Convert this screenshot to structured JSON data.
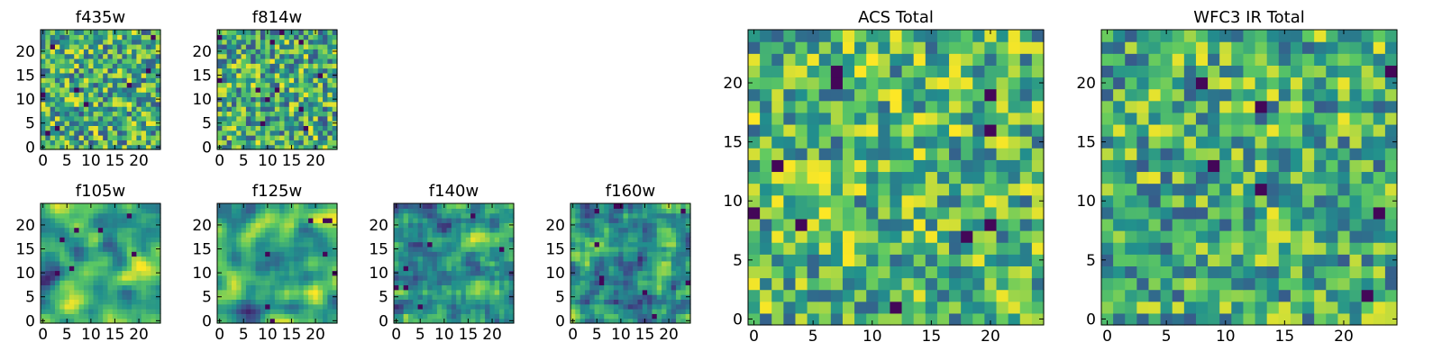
{
  "figure": {
    "colormap": "viridis",
    "colors": [
      "#440154",
      "#3b528b",
      "#21908d",
      "#5dc962",
      "#fde725"
    ]
  },
  "chart_data": [
    {
      "type": "heatmap",
      "title": "f435w",
      "size": 25,
      "seed": 435,
      "xticks": [
        0,
        5,
        10,
        15,
        20
      ],
      "yticks": [
        0,
        5,
        10,
        15,
        20
      ],
      "smooth": 0,
      "contrast": 1.25,
      "shift": 0.62
    },
    {
      "type": "heatmap",
      "title": "f814w",
      "size": 25,
      "seed": 814,
      "xticks": [
        0,
        5,
        10,
        15,
        20
      ],
      "yticks": [
        0,
        5,
        10,
        15,
        20
      ],
      "smooth": 0,
      "contrast": 1.25,
      "shift": 0.62
    },
    {
      "type": "heatmap",
      "title": "f105w",
      "size": 25,
      "seed": 105,
      "xticks": [
        0,
        5,
        10,
        15,
        20
      ],
      "yticks": [
        0,
        5,
        10,
        15,
        20
      ],
      "smooth": 2,
      "contrast": 1.55,
      "shift": 0.58
    },
    {
      "type": "heatmap",
      "title": "f125w",
      "size": 25,
      "seed": 125,
      "xticks": [
        0,
        5,
        10,
        15,
        20
      ],
      "yticks": [
        0,
        5,
        10,
        15,
        20
      ],
      "smooth": 2,
      "contrast": 1.55,
      "shift": 0.58
    },
    {
      "type": "heatmap",
      "title": "f140w",
      "size": 25,
      "seed": 140,
      "xticks": [
        0,
        5,
        10,
        15,
        20
      ],
      "yticks": [
        0,
        5,
        10,
        15,
        20
      ],
      "smooth": 1,
      "contrast": 1.4,
      "shift": 0.55
    },
    {
      "type": "heatmap",
      "title": "f160w",
      "size": 25,
      "seed": 160,
      "xticks": [
        0,
        5,
        10,
        15,
        20
      ],
      "yticks": [
        0,
        5,
        10,
        15,
        20
      ],
      "smooth": 1,
      "contrast": 1.4,
      "shift": 0.55
    },
    {
      "type": "heatmap",
      "title": "ACS Total",
      "size": 25,
      "seed": 901,
      "xticks": [
        0,
        5,
        10,
        15,
        20
      ],
      "yticks": [
        0,
        5,
        10,
        15,
        20
      ],
      "smooth": 0,
      "contrast": 1.15,
      "shift": 0.66
    },
    {
      "type": "heatmap",
      "title": "WFC3 IR Total",
      "size": 25,
      "seed": 902,
      "xticks": [
        0,
        5,
        10,
        15,
        20
      ],
      "yticks": [
        0,
        5,
        10,
        15,
        20
      ],
      "smooth": 0,
      "contrast": 1.15,
      "shift": 0.63
    }
  ]
}
